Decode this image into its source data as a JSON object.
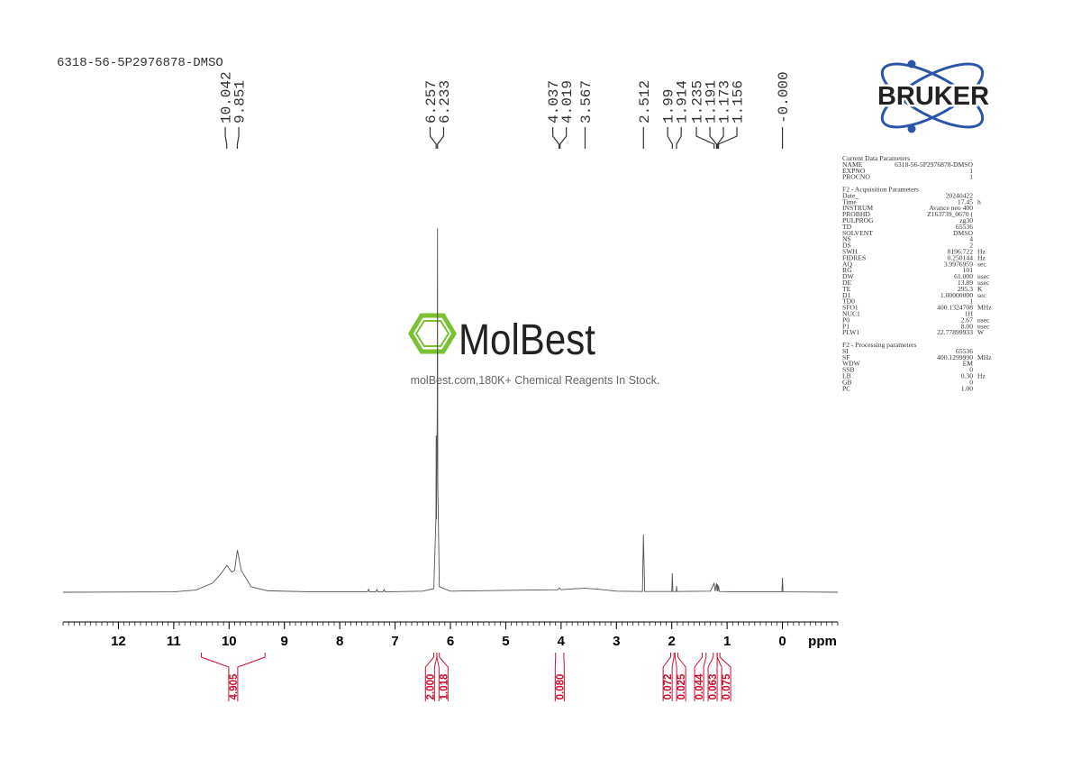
{
  "header": {
    "title": "6318-56-5P2976878-DMSO"
  },
  "chart_data": {
    "type": "line",
    "x": [
      13,
      11,
      10.6,
      10.3,
      10.15,
      10.04,
      9.95,
      9.9,
      9.85,
      9.78,
      9.6,
      9.3,
      8.5,
      7.5,
      7.48,
      7.46,
      7.35,
      7.33,
      7.31,
      7.22,
      7.2,
      7.18,
      6.5,
      6.3,
      6.262,
      6.257,
      6.252,
      6.238,
      6.233,
      6.228,
      6.2,
      6.0,
      5.0,
      4.06,
      4.03,
      4.0,
      3.8,
      3.56,
      3.3,
      3.0,
      2.53,
      2.512,
      2.49,
      2.0,
      1.99,
      1.98,
      1.92,
      1.914,
      1.905,
      1.3,
      1.235,
      1.215,
      1.191,
      1.18,
      1.173,
      1.165,
      1.156,
      1.14,
      0.8,
      0.01,
      0.0,
      -0.01,
      -1
    ],
    "y": [
      0,
      0.1,
      0.6,
      2.5,
      5,
      7.4,
      5.5,
      6,
      11.6,
      6,
      1.5,
      0.4,
      0.1,
      0.1,
      0.8,
      0.1,
      0.1,
      0.8,
      0.1,
      0.1,
      0.8,
      0.1,
      0.3,
      1,
      20,
      43,
      20,
      50,
      100,
      30,
      1.5,
      0.3,
      0.5,
      0.7,
      1.2,
      0.7,
      0.9,
      1.1,
      0.8,
      0.3,
      0.2,
      15.8,
      0.2,
      0.2,
      5.2,
      0.2,
      0.2,
      1.7,
      0.2,
      0.3,
      2.5,
      0.3,
      2.5,
      0.3,
      2.2,
      0.3,
      1.8,
      0.2,
      0.1,
      0.1,
      4,
      0.1,
      0
    ],
    "xlim": [
      13,
      -1
    ],
    "ylim": [
      0,
      100
    ],
    "xticks": [
      12,
      11,
      10,
      9,
      8,
      7,
      6,
      5,
      4,
      3,
      2,
      1,
      0
    ],
    "xminor": 0.1,
    "x_label": "ppm",
    "color": "#555555",
    "peaks": [
      10.042,
      9.851,
      6.257,
      6.233,
      4.037,
      4.019,
      3.567,
      2.512,
      1.99,
      1.914,
      1.235,
      1.191,
      1.173,
      1.156,
      {
        "value": 0,
        "label": "-0.000"
      }
    ],
    "integral_color": "#c8102e",
    "integrals": [
      {
        "value": 4.905,
        "range": [
          10.5,
          9.35
        ]
      },
      {
        "value": 2,
        "label": "2.000",
        "range": [
          6.3,
          6.245
        ]
      },
      {
        "value": 1.018,
        "range": [
          6.245,
          6.2
        ]
      },
      {
        "value": 0.08,
        "label": "0.080",
        "range": [
          4.1,
          3.95
        ]
      },
      {
        "value": 0.072,
        "range": [
          2.02,
          1.96
        ]
      },
      {
        "value": 0.025,
        "label": "0.025",
        "range": [
          1.94,
          1.89
        ]
      },
      {
        "value": 0.044,
        "range": [
          1.45,
          1.38
        ]
      },
      {
        "value": 0.063,
        "range": [
          1.25,
          1.18
        ]
      },
      {
        "value": 0.075,
        "range": [
          1.18,
          1.13
        ]
      }
    ]
  },
  "logos": {
    "bruker": "BRUKER",
    "watermark": "MolBest",
    "tagline": "molBest.com,180K+ Chemical Reagents In Stock."
  },
  "parameters": [
    {
      "title": "Current Data Parameters",
      "rows": [
        [
          "NAME",
          "6318-56-5P2976878-DMSO"
        ],
        [
          "EXPNO",
          "1"
        ],
        [
          "PROCNO",
          "1"
        ]
      ]
    },
    {
      "title": "F2 - Acquisition Parameters",
      "rows": [
        [
          "Date_",
          "20240422"
        ],
        [
          "Time",
          "17.45",
          "h"
        ],
        [
          "INSTRUM",
          "Avance neo 400"
        ],
        [
          "PROBHD",
          "Z163739_0670 ("
        ],
        [
          "PULPROG",
          "zg30"
        ],
        [
          "TD",
          "65536"
        ],
        [
          "SOLVENT",
          "DMSO"
        ],
        [
          "NS",
          "4"
        ],
        [
          "DS",
          "2"
        ],
        [
          "SWH",
          "8196.722",
          "Hz"
        ],
        [
          "FIDRES",
          "0.250144",
          "Hz"
        ],
        [
          "AQ",
          "3.9976959",
          "sec"
        ],
        [
          "RG",
          "101"
        ],
        [
          "DW",
          "61.000",
          "usec"
        ],
        [
          "DE",
          "13.89",
          "usec"
        ],
        [
          "TE",
          "295.3",
          "K"
        ],
        [
          "D1",
          "1.00000000",
          "sec"
        ],
        [
          "TD0",
          "1"
        ],
        [
          "SFO1",
          "400.1324708",
          "MHz"
        ],
        [
          "NUC1",
          "1H"
        ],
        [
          "P0",
          "2.67",
          "usec"
        ],
        [
          "P1",
          "8.00",
          "usec"
        ],
        [
          "PLW1",
          "22.77899933",
          "W"
        ]
      ]
    },
    {
      "title": "F2 - Processing parameters",
      "rows": [
        [
          "SI",
          "65536"
        ],
        [
          "SF",
          "400.1299990",
          "MHz"
        ],
        [
          "WDW",
          "EM"
        ],
        [
          "SSB",
          "0"
        ],
        [
          "LB",
          "0.30",
          "Hz"
        ],
        [
          "GB",
          "0"
        ],
        [
          "PC",
          "1.00"
        ]
      ]
    }
  ]
}
